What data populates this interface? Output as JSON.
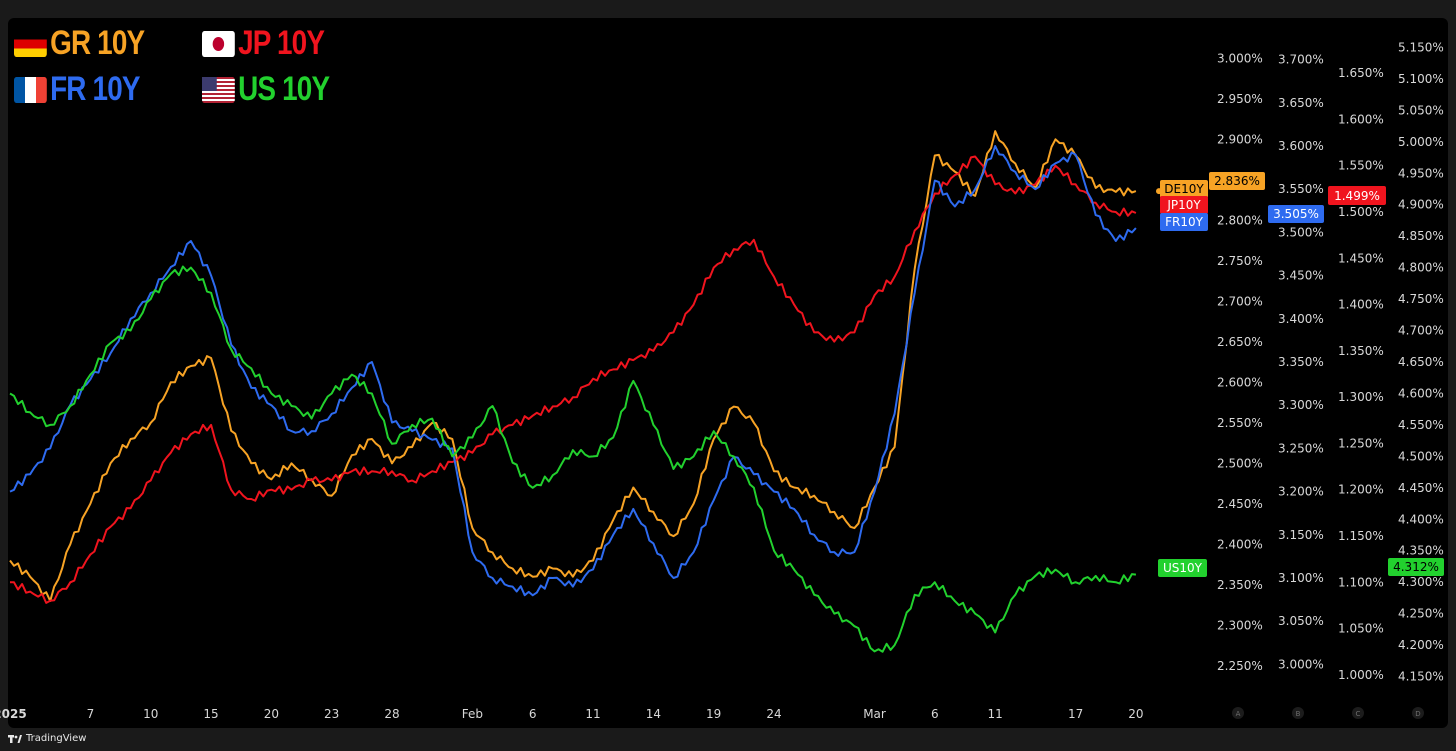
{
  "legend": [
    {
      "flag": "de",
      "label": "GR 10Y",
      "color": "#f7a325"
    },
    {
      "flag": "jp",
      "label": "JP 10Y",
      "color": "#f0141e"
    },
    {
      "flag": "fr",
      "label": "FR 10Y",
      "color": "#2e6bf0"
    },
    {
      "flag": "us",
      "label": "US 10Y",
      "color": "#22d12e"
    }
  ],
  "footer": {
    "brand": "TradingView"
  },
  "chart_data": {
    "type": "line",
    "title": "",
    "x_ticks": [
      {
        "label": "2025",
        "idx": 0
      },
      {
        "label": "7",
        "idx": 4
      },
      {
        "label": "10",
        "idx": 7
      },
      {
        "label": "15",
        "idx": 10
      },
      {
        "label": "20",
        "idx": 13
      },
      {
        "label": "23",
        "idx": 16
      },
      {
        "label": "28",
        "idx": 19
      },
      {
        "label": "Feb",
        "idx": 23
      },
      {
        "label": "6",
        "idx": 26
      },
      {
        "label": "11",
        "idx": 29
      },
      {
        "label": "14",
        "idx": 32
      },
      {
        "label": "19",
        "idx": 35
      },
      {
        "label": "24",
        "idx": 38
      },
      {
        "label": "Mar",
        "idx": 43
      },
      {
        "label": "6",
        "idx": 46
      },
      {
        "label": "11",
        "idx": 49
      },
      {
        "label": "17",
        "idx": 53
      },
      {
        "label": "20",
        "idx": 56
      }
    ],
    "axes": [
      {
        "id": "A",
        "range": [
          2.225,
          3.025
        ],
        "ticks": [
          "3.000%",
          "2.950%",
          "2.900%",
          "2.850%",
          "2.800%",
          "2.750%",
          "2.700%",
          "2.650%",
          "2.600%",
          "2.550%",
          "2.500%",
          "2.450%",
          "2.400%",
          "2.350%",
          "2.300%",
          "2.250%"
        ],
        "tick_values": [
          3.0,
          2.95,
          2.9,
          2.85,
          2.8,
          2.75,
          2.7,
          2.65,
          2.6,
          2.55,
          2.5,
          2.45,
          2.4,
          2.35,
          2.3,
          2.25
        ]
      },
      {
        "id": "B",
        "range": [
          2.975,
          3.725
        ],
        "ticks": [
          "3.700%",
          "3.650%",
          "3.600%",
          "3.550%",
          "3.500%",
          "3.450%",
          "3.400%",
          "3.350%",
          "3.300%",
          "3.250%",
          "3.200%",
          "3.150%",
          "3.100%",
          "3.050%",
          "3.000%"
        ],
        "tick_values": [
          3.7,
          3.65,
          3.6,
          3.55,
          3.5,
          3.45,
          3.4,
          3.35,
          3.3,
          3.25,
          3.2,
          3.15,
          3.1,
          3.05,
          3.0
        ]
      },
      {
        "id": "C",
        "range": [
          0.988,
          1.688
        ],
        "ticks": [
          "1.650%",
          "1.600%",
          "1.550%",
          "1.500%",
          "1.450%",
          "1.400%",
          "1.350%",
          "1.300%",
          "1.250%",
          "1.200%",
          "1.150%",
          "1.100%",
          "1.050%",
          "1.000%"
        ],
        "tick_values": [
          1.65,
          1.6,
          1.55,
          1.5,
          1.45,
          1.4,
          1.35,
          1.3,
          1.25,
          1.2,
          1.15,
          1.1,
          1.05,
          1.0
        ]
      },
      {
        "id": "D",
        "range": [
          4.135,
          5.165
        ],
        "ticks": [
          "5.150%",
          "5.100%",
          "5.050%",
          "5.000%",
          "4.950%",
          "4.900%",
          "4.850%",
          "4.800%",
          "4.750%",
          "4.700%",
          "4.650%",
          "4.600%",
          "4.550%",
          "4.500%",
          "4.450%",
          "4.400%",
          "4.350%",
          "4.300%",
          "4.250%",
          "4.200%",
          "4.150%"
        ],
        "tick_values": [
          5.15,
          5.1,
          5.05,
          5.0,
          4.95,
          4.9,
          4.85,
          4.8,
          4.75,
          4.7,
          4.65,
          4.6,
          4.55,
          4.5,
          4.45,
          4.4,
          4.35,
          4.3,
          4.25,
          4.2,
          4.15
        ]
      }
    ],
    "axis_letters": [
      "A",
      "B",
      "C",
      "D"
    ],
    "series": [
      {
        "name": "DE10Y",
        "axis": "A",
        "color": "#f7a325",
        "last_label": "2.836%",
        "values": [
          2.38,
          2.36,
          2.33,
          2.4,
          2.45,
          2.5,
          2.53,
          2.55,
          2.6,
          2.62,
          2.63,
          2.54,
          2.5,
          2.48,
          2.5,
          2.48,
          2.46,
          2.51,
          2.53,
          2.5,
          2.52,
          2.55,
          2.53,
          2.42,
          2.39,
          2.37,
          2.36,
          2.37,
          2.36,
          2.38,
          2.43,
          2.47,
          2.44,
          2.41,
          2.45,
          2.53,
          2.57,
          2.55,
          2.49,
          2.47,
          2.46,
          2.44,
          2.42,
          2.47,
          2.52,
          2.74,
          2.88,
          2.86,
          2.83,
          2.91,
          2.87,
          2.84,
          2.9,
          2.88,
          2.84,
          2.835,
          2.836
        ]
      },
      {
        "name": "JP10Y",
        "axis": "C",
        "color": "#f0141e",
        "last_label": "1.499%",
        "values": [
          1.1,
          1.09,
          1.08,
          1.1,
          1.13,
          1.16,
          1.18,
          1.21,
          1.24,
          1.26,
          1.27,
          1.2,
          1.19,
          1.2,
          1.2,
          1.21,
          1.21,
          1.22,
          1.22,
          1.22,
          1.21,
          1.22,
          1.23,
          1.24,
          1.26,
          1.27,
          1.28,
          1.29,
          1.3,
          1.32,
          1.33,
          1.34,
          1.35,
          1.37,
          1.4,
          1.44,
          1.46,
          1.47,
          1.43,
          1.4,
          1.37,
          1.36,
          1.37,
          1.41,
          1.43,
          1.48,
          1.52,
          1.54,
          1.56,
          1.53,
          1.52,
          1.53,
          1.55,
          1.53,
          1.51,
          1.5,
          1.499
        ]
      },
      {
        "name": "FR10Y",
        "axis": "B",
        "color": "#2e6bf0",
        "last_label": "3.505%",
        "values": [
          3.2,
          3.22,
          3.25,
          3.3,
          3.33,
          3.36,
          3.4,
          3.43,
          3.46,
          3.49,
          3.45,
          3.37,
          3.32,
          3.3,
          3.27,
          3.27,
          3.29,
          3.32,
          3.35,
          3.28,
          3.27,
          3.26,
          3.25,
          3.13,
          3.1,
          3.09,
          3.08,
          3.1,
          3.09,
          3.11,
          3.15,
          3.18,
          3.14,
          3.1,
          3.13,
          3.19,
          3.24,
          3.22,
          3.2,
          3.18,
          3.15,
          3.13,
          3.13,
          3.2,
          3.29,
          3.43,
          3.56,
          3.53,
          3.55,
          3.6,
          3.57,
          3.55,
          3.58,
          3.59,
          3.52,
          3.49,
          3.505
        ]
      },
      {
        "name": "US10Y",
        "axis": "D",
        "color": "#22d12e",
        "last_label": "4.312%",
        "values": [
          4.6,
          4.57,
          4.55,
          4.58,
          4.63,
          4.68,
          4.7,
          4.75,
          4.79,
          4.8,
          4.76,
          4.67,
          4.64,
          4.6,
          4.58,
          4.56,
          4.6,
          4.63,
          4.6,
          4.52,
          4.55,
          4.56,
          4.5,
          4.53,
          4.58,
          4.49,
          4.45,
          4.47,
          4.51,
          4.5,
          4.53,
          4.62,
          4.55,
          4.48,
          4.5,
          4.54,
          4.5,
          4.45,
          4.35,
          4.32,
          4.28,
          4.25,
          4.23,
          4.19,
          4.2,
          4.28,
          4.3,
          4.27,
          4.25,
          4.22,
          4.28,
          4.31,
          4.32,
          4.3,
          4.31,
          4.3,
          4.312
        ]
      }
    ]
  }
}
